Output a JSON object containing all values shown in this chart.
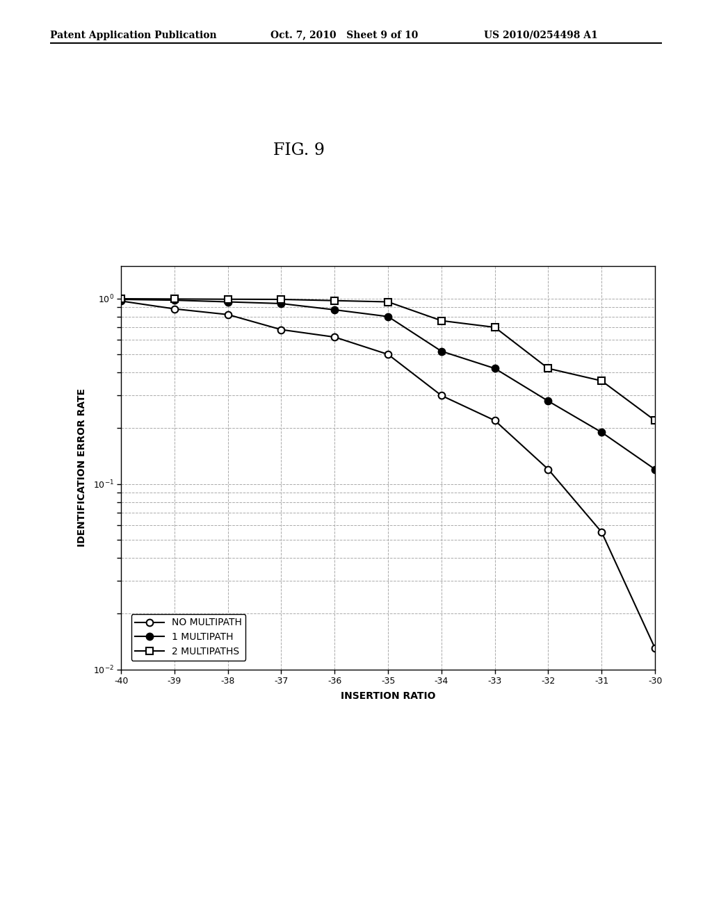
{
  "header_left": "Patent Application Publication",
  "header_mid": "Oct. 7, 2010   Sheet 9 of 10",
  "header_right": "US 2010/0254498 A1",
  "fig_label": "FIG. 9",
  "xlabel": "INSERTION RATIO",
  "ylabel": "IDENTIFICATION ERROR RATE",
  "xlim": [
    -40,
    -30
  ],
  "ylim_low": 0.01,
  "ylim_high": 1.5,
  "xticks": [
    -40,
    -39,
    -38,
    -37,
    -36,
    -35,
    -34,
    -33,
    -32,
    -31,
    -30
  ],
  "series": [
    {
      "label": "NO MULTIPATH",
      "x": [
        -40,
        -39,
        -38,
        -37,
        -36,
        -35,
        -34,
        -33,
        -32,
        -31,
        -30
      ],
      "y": [
        0.97,
        0.88,
        0.82,
        0.68,
        0.62,
        0.5,
        0.3,
        0.22,
        0.12,
        0.055,
        0.013
      ],
      "marker": "o",
      "marker_fill": "white",
      "color": "black",
      "linewidth": 1.5
    },
    {
      "label": "1 MULTIPATH",
      "x": [
        -40,
        -39,
        -38,
        -37,
        -36,
        -35,
        -34,
        -33,
        -32,
        -31,
        -30
      ],
      "y": [
        0.99,
        0.98,
        0.96,
        0.94,
        0.87,
        0.8,
        0.52,
        0.42,
        0.28,
        0.19,
        0.12
      ],
      "marker": "o",
      "marker_fill": "black",
      "color": "black",
      "linewidth": 1.5
    },
    {
      "label": "2 MULTIPATHS",
      "x": [
        -40,
        -39,
        -38,
        -37,
        -36,
        -35,
        -34,
        -33,
        -32,
        -31,
        -30
      ],
      "y": [
        0.998,
        0.995,
        0.992,
        0.99,
        0.975,
        0.96,
        0.76,
        0.7,
        0.42,
        0.36,
        0.22
      ],
      "marker": "s",
      "marker_fill": "white",
      "color": "black",
      "linewidth": 1.5
    }
  ],
  "background_color": "#ffffff",
  "grid_color": "#aaaaaa",
  "header_fontsize": 10,
  "fig_label_fontsize": 17,
  "axis_label_fontsize": 10,
  "tick_fontsize": 9,
  "legend_fontsize": 10
}
